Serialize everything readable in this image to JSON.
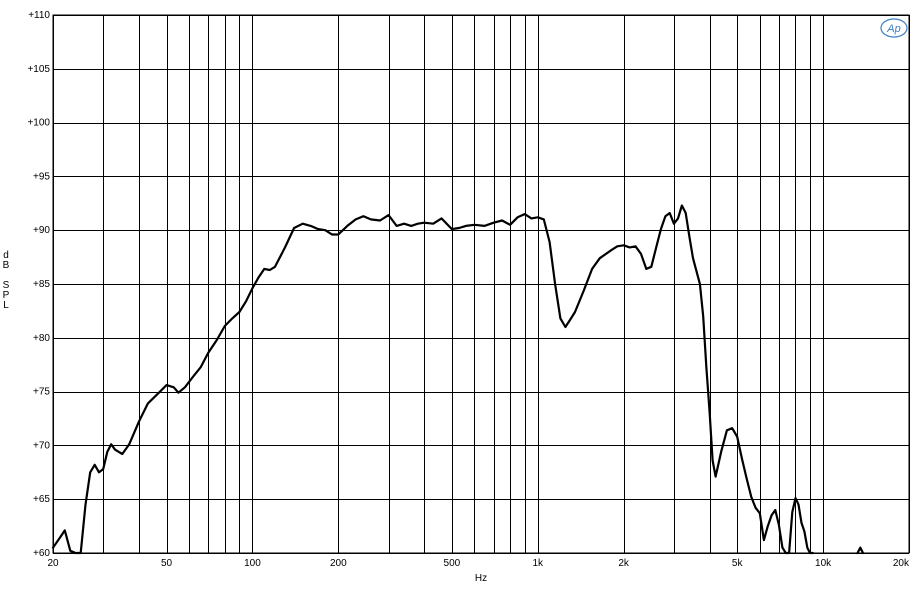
{
  "chart_data": {
    "type": "line",
    "title": "",
    "xlabel": "Hz",
    "ylabel": "dB SPL",
    "xscale": "log",
    "xlim": [
      20,
      20000
    ],
    "ylim": [
      60,
      110
    ],
    "grid": true,
    "legend": "none",
    "logo_text": "Ap",
    "colors": {
      "curve": "#000000",
      "grid": "#000000",
      "logo": "#3b7fc4"
    },
    "yticks": [
      {
        "value": 60,
        "label": "+60"
      },
      {
        "value": 65,
        "label": "+65"
      },
      {
        "value": 70,
        "label": "+70"
      },
      {
        "value": 75,
        "label": "+75"
      },
      {
        "value": 80,
        "label": "+80"
      },
      {
        "value": 85,
        "label": "+85"
      },
      {
        "value": 90,
        "label": "+90"
      },
      {
        "value": 95,
        "label": "+95"
      },
      {
        "value": 100,
        "label": "+100"
      },
      {
        "value": 105,
        "label": "+105"
      },
      {
        "value": 110,
        "label": "+110"
      }
    ],
    "xticks": [
      {
        "value": 20,
        "label": "20"
      },
      {
        "value": 50,
        "label": "50"
      },
      {
        "value": 100,
        "label": "100"
      },
      {
        "value": 200,
        "label": "200"
      },
      {
        "value": 500,
        "label": "500"
      },
      {
        "value": 1000,
        "label": "1k"
      },
      {
        "value": 2000,
        "label": "2k"
      },
      {
        "value": 5000,
        "label": "5k"
      },
      {
        "value": 10000,
        "label": "10k"
      },
      {
        "value": 20000,
        "label": "20k"
      }
    ],
    "x_gridlines": [
      20,
      30,
      40,
      50,
      60,
      70,
      80,
      90,
      100,
      200,
      300,
      400,
      500,
      600,
      700,
      800,
      900,
      1000,
      2000,
      3000,
      4000,
      5000,
      6000,
      7000,
      8000,
      9000,
      10000,
      20000
    ],
    "series": [
      {
        "x": [
          20,
          21,
          22,
          23,
          24,
          25,
          26,
          27,
          28,
          29,
          30,
          31,
          32,
          33,
          35,
          37,
          40,
          43,
          47,
          50,
          53,
          55,
          58,
          62,
          66,
          70,
          75,
          80,
          85,
          90,
          95,
          100,
          105,
          110,
          115,
          120,
          130,
          140,
          150,
          160,
          170,
          180,
          190,
          200,
          215,
          230,
          245,
          260,
          280,
          300,
          320,
          340,
          360,
          380,
          400,
          430,
          460,
          500,
          530,
          560,
          600,
          650,
          700,
          750,
          800,
          850,
          900,
          950,
          1000,
          1050,
          1100,
          1150,
          1200,
          1250,
          1300,
          1350,
          1450,
          1550,
          1650,
          1800,
          1900,
          2000,
          2100,
          2200,
          2300,
          2400,
          2500,
          2600,
          2700,
          2800,
          2900,
          3000,
          3100,
          3200,
          3300,
          3400,
          3500,
          3700,
          3800,
          3900,
          4000,
          4100,
          4200,
          4400,
          4600,
          4800,
          5000,
          5200,
          5400,
          5600,
          5800,
          6000,
          6200,
          6400,
          6600,
          6800,
          7000,
          7200,
          7400,
          7600,
          7800,
          8000,
          8200,
          8400,
          8600,
          8800,
          9000,
          9200,
          13200,
          13500,
          13800
        ],
        "y": [
          60.5,
          61.3,
          62.1,
          60.2,
          58.5,
          59.8,
          64.5,
          67.5,
          68.2,
          67.5,
          67.8,
          69.4,
          70.1,
          69.6,
          69.2,
          70.1,
          72.2,
          73.9,
          74.9,
          75.6,
          75.4,
          74.9,
          75.4,
          76.4,
          77.3,
          78.6,
          79.8,
          81.1,
          81.8,
          82.4,
          83.4,
          84.6,
          85.6,
          86.4,
          86.3,
          86.6,
          88.4,
          90.2,
          90.6,
          90.4,
          90.1,
          90.0,
          89.6,
          89.6,
          90.4,
          91.0,
          91.3,
          91.0,
          90.9,
          91.4,
          90.4,
          90.6,
          90.4,
          90.6,
          90.7,
          90.6,
          91.1,
          90.1,
          90.2,
          90.4,
          90.5,
          90.4,
          90.7,
          90.9,
          90.5,
          91.2,
          91.5,
          91.1,
          91.2,
          91.0,
          88.9,
          85.0,
          81.8,
          81.0,
          81.7,
          82.4,
          84.4,
          86.4,
          87.4,
          88.1,
          88.5,
          88.6,
          88.4,
          88.5,
          87.8,
          86.4,
          86.6,
          88.4,
          90.1,
          91.3,
          91.6,
          90.6,
          91.1,
          92.3,
          91.6,
          89.4,
          87.4,
          85.0,
          82.0,
          77.2,
          73.1,
          68.6,
          67.1,
          69.5,
          71.4,
          71.6,
          70.8,
          68.7,
          66.9,
          65.2,
          64.2,
          63.7,
          61.2,
          62.5,
          63.5,
          64.0,
          62.6,
          60.5,
          59.5,
          60.0,
          63.8,
          65.1,
          64.5,
          62.8,
          62.0,
          60.5,
          60.0,
          59.4,
          60.0,
          60.5,
          59.8
        ]
      }
    ]
  }
}
